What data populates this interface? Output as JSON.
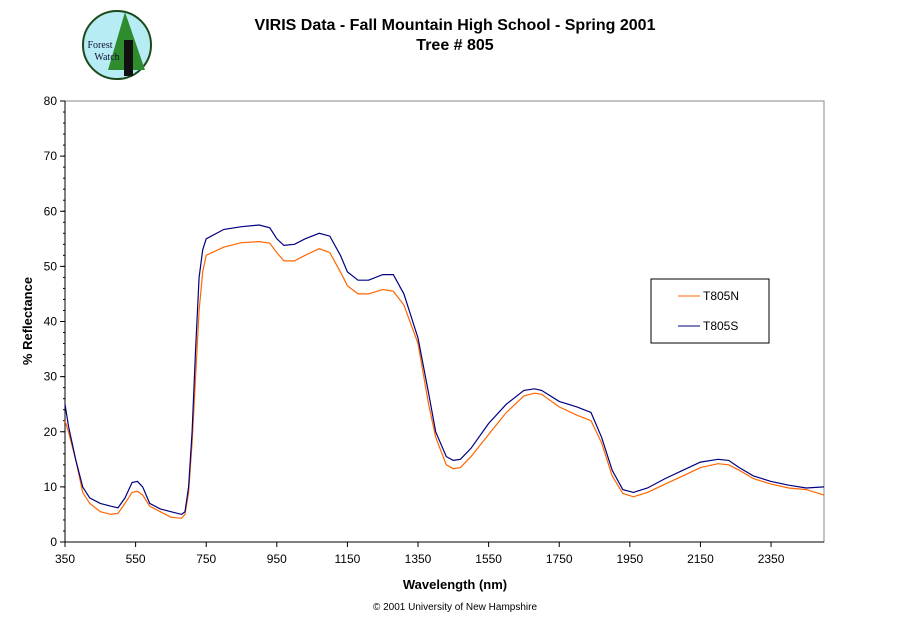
{
  "logo": {
    "text": "Forest Watch"
  },
  "chart_data": {
    "type": "line",
    "title": "VIRIS Data - Fall Mountain High School - Spring 2001",
    "subtitle": "Tree # 805",
    "xlabel": "Wavelength (nm)",
    "ylabel": "% Reflectance",
    "xlim": [
      350,
      2500
    ],
    "ylim": [
      0,
      80
    ],
    "xticks": [
      350,
      550,
      750,
      950,
      1150,
      1350,
      1550,
      1750,
      1950,
      2150,
      2350
    ],
    "yticks": [
      0,
      10,
      20,
      30,
      40,
      50,
      60,
      70,
      80
    ],
    "grid": false,
    "legend_position": "right",
    "footer": "© 2001 University of New Hampshire",
    "x": [
      350,
      360,
      380,
      400,
      420,
      450,
      480,
      500,
      520,
      540,
      555,
      570,
      590,
      620,
      650,
      680,
      690,
      700,
      710,
      720,
      730,
      740,
      750,
      800,
      850,
      900,
      930,
      950,
      970,
      1000,
      1030,
      1070,
      1100,
      1130,
      1150,
      1180,
      1210,
      1250,
      1280,
      1310,
      1350,
      1380,
      1400,
      1430,
      1450,
      1470,
      1500,
      1550,
      1600,
      1650,
      1680,
      1700,
      1750,
      1800,
      1840,
      1870,
      1900,
      1930,
      1960,
      2000,
      2050,
      2100,
      2150,
      2200,
      2230,
      2260,
      2300,
      2350,
      2400,
      2450,
      2500
    ],
    "series": [
      {
        "name": "T805N",
        "color": "#ff6600",
        "values": [
          22,
          20,
          15,
          9,
          7,
          5.5,
          5,
          5.2,
          7,
          9,
          9.2,
          8.5,
          6.5,
          5.5,
          4.5,
          4.3,
          5,
          9,
          18,
          30,
          42,
          49,
          52,
          53.5,
          54.3,
          54.5,
          54.2,
          52.5,
          51,
          51,
          52,
          53.2,
          52.5,
          49,
          46.5,
          45,
          45,
          45.8,
          45.5,
          43,
          36,
          25,
          19,
          14,
          13.3,
          13.5,
          15.5,
          19.5,
          23.5,
          26.5,
          27,
          26.8,
          24.5,
          23,
          22,
          18,
          12,
          8.8,
          8.2,
          9,
          10.5,
          12,
          13.5,
          14.2,
          14,
          13,
          11.5,
          10.5,
          9.8,
          9.5,
          8.5
        ]
      },
      {
        "name": "T805S",
        "color": "#000080",
        "values": [
          25,
          21,
          15,
          10,
          8,
          7,
          6.5,
          6.2,
          8,
          10.8,
          11,
          10,
          7,
          6,
          5.5,
          5,
          5.5,
          10,
          20,
          35,
          48,
          53,
          55,
          56.7,
          57.2,
          57.5,
          57,
          55,
          53.8,
          54,
          55,
          56,
          55.5,
          52,
          49,
          47.5,
          47.5,
          48.5,
          48.5,
          45,
          37,
          27,
          20,
          15.5,
          14.8,
          15,
          17,
          21.5,
          25,
          27.5,
          27.8,
          27.5,
          25.5,
          24.5,
          23.5,
          19,
          13,
          9.5,
          9,
          9.8,
          11.5,
          13,
          14.5,
          15,
          14.8,
          13.5,
          12,
          11,
          10.3,
          9.8,
          10
        ]
      }
    ]
  }
}
